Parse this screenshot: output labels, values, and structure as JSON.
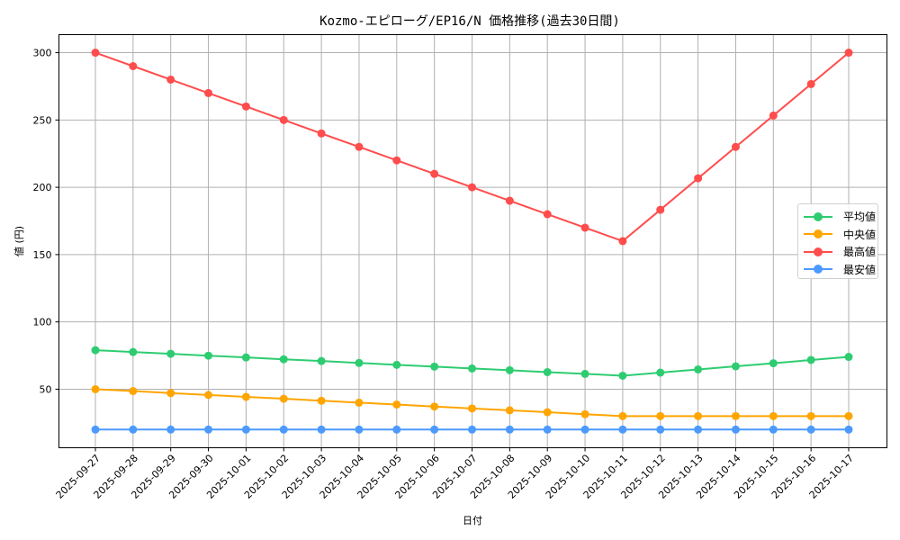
{
  "chart_data": {
    "type": "line",
    "title": "Kozmo-エピローグ/EP16/N 価格推移(過去30日間)",
    "xlabel": "日付",
    "ylabel": "値 (円)",
    "ylim": [
      6.5,
      313.4
    ],
    "yticks": [
      50,
      100,
      150,
      200,
      250,
      300
    ],
    "grid": true,
    "legend_position": "center right",
    "x": [
      "2025-09-27",
      "2025-09-28",
      "2025-09-29",
      "2025-09-30",
      "2025-10-01",
      "2025-10-02",
      "2025-10-03",
      "2025-10-04",
      "2025-10-05",
      "2025-10-06",
      "2025-10-07",
      "2025-10-08",
      "2025-10-09",
      "2025-10-10",
      "2025-10-11",
      "2025-10-12",
      "2025-10-13",
      "2025-10-14",
      "2025-10-15",
      "2025-10-16",
      "2025-10-17"
    ],
    "series": [
      {
        "name": "平均値",
        "color": "#2ecc71",
        "values": [
          79.0,
          77.6,
          76.3,
          74.9,
          73.6,
          72.2,
          70.9,
          69.5,
          68.1,
          66.8,
          65.4,
          64.1,
          62.7,
          61.4,
          60.0,
          62.3,
          64.7,
          67.0,
          69.3,
          71.7,
          74.0
        ]
      },
      {
        "name": "中央値",
        "color": "#ffa500",
        "values": [
          50.0,
          48.6,
          47.1,
          45.7,
          44.3,
          42.9,
          41.4,
          40.0,
          38.6,
          37.1,
          35.7,
          34.3,
          32.9,
          31.4,
          30.0,
          30.0,
          30.0,
          30.0,
          30.0,
          30.0,
          30.0
        ]
      },
      {
        "name": "最高値",
        "color": "#ff4c4c",
        "values": [
          300,
          290,
          280,
          270,
          260,
          250,
          240,
          230,
          220,
          210,
          200,
          190,
          180,
          170,
          160,
          183.3,
          206.7,
          230,
          253.3,
          276.7,
          300
        ]
      },
      {
        "name": "最安値",
        "color": "#4c9aff",
        "values": [
          20,
          20,
          20,
          20,
          20,
          20,
          20,
          20,
          20,
          20,
          20,
          20,
          20,
          20,
          20,
          20,
          20,
          20,
          20,
          20,
          20
        ]
      }
    ]
  }
}
